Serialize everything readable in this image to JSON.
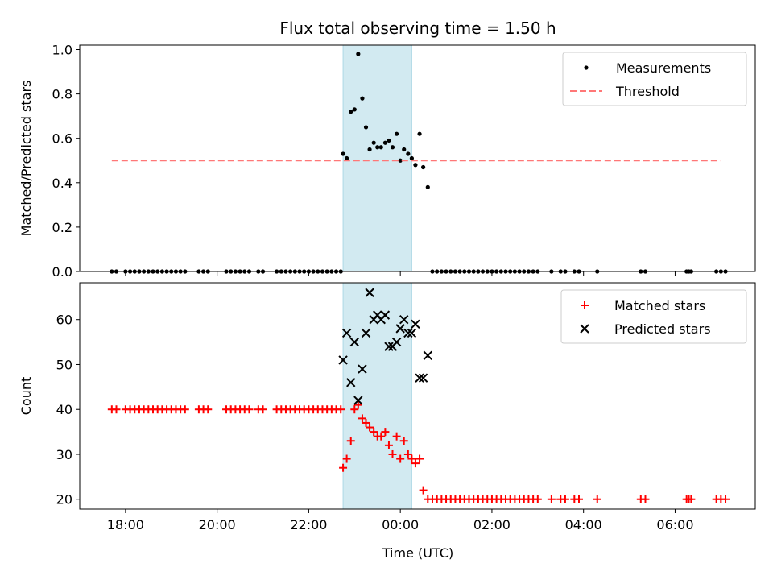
{
  "chart_data": {
    "type": "scatter",
    "title": "Flux total observing time = 1.50 h",
    "xlabel": "Time (UTC)",
    "x_ticks": [
      "18:00",
      "20:00",
      "22:00",
      "00:00",
      "02:00",
      "04:00",
      "06:00"
    ],
    "x_range_hours": [
      17.0,
      31.75
    ],
    "observing_window_hours": [
      22.75,
      24.25
    ],
    "shade_color": "#add8e6",
    "panels": [
      {
        "ylabel": "Matched/Predicted stars",
        "ylim": [
          0,
          1.02
        ],
        "yticks": [
          "0.0",
          "0.2",
          "0.4",
          "0.6",
          "0.8",
          "1.0"
        ],
        "legend_position": "upper right",
        "series": [
          {
            "name": "Measurements",
            "kind": "scatter",
            "marker": "dot",
            "color": "#000000",
            "points": [
              [
                17.7,
                0
              ],
              [
                17.8,
                0
              ],
              [
                18.0,
                0
              ],
              [
                18.1,
                0
              ],
              [
                18.2,
                0
              ],
              [
                18.3,
                0
              ],
              [
                18.4,
                0
              ],
              [
                18.5,
                0
              ],
              [
                18.6,
                0
              ],
              [
                18.7,
                0
              ],
              [
                18.8,
                0
              ],
              [
                18.9,
                0
              ],
              [
                19.0,
                0
              ],
              [
                19.1,
                0
              ],
              [
                19.2,
                0
              ],
              [
                19.3,
                0
              ],
              [
                19.6,
                0
              ],
              [
                19.7,
                0
              ],
              [
                19.8,
                0
              ],
              [
                20.2,
                0
              ],
              [
                20.3,
                0
              ],
              [
                20.4,
                0
              ],
              [
                20.5,
                0
              ],
              [
                20.6,
                0
              ],
              [
                20.7,
                0
              ],
              [
                20.9,
                0
              ],
              [
                21.0,
                0
              ],
              [
                21.3,
                0
              ],
              [
                21.4,
                0
              ],
              [
                21.5,
                0
              ],
              [
                21.6,
                0
              ],
              [
                21.7,
                0
              ],
              [
                21.8,
                0
              ],
              [
                21.9,
                0
              ],
              [
                22.0,
                0
              ],
              [
                22.1,
                0
              ],
              [
                22.2,
                0
              ],
              [
                22.3,
                0
              ],
              [
                22.4,
                0
              ],
              [
                22.5,
                0
              ],
              [
                22.6,
                0
              ],
              [
                22.7,
                0
              ],
              [
                22.75,
                0.53
              ],
              [
                22.83,
                0.51
              ],
              [
                22.92,
                0.72
              ],
              [
                23.0,
                0.73
              ],
              [
                23.08,
                0.98
              ],
              [
                23.17,
                0.78
              ],
              [
                23.25,
                0.65
              ],
              [
                23.33,
                0.55
              ],
              [
                23.42,
                0.58
              ],
              [
                23.5,
                0.56
              ],
              [
                23.58,
                0.56
              ],
              [
                23.67,
                0.58
              ],
              [
                23.75,
                0.59
              ],
              [
                23.83,
                0.56
              ],
              [
                23.92,
                0.62
              ],
              [
                24.0,
                0.5
              ],
              [
                24.08,
                0.55
              ],
              [
                24.17,
                0.53
              ],
              [
                24.25,
                0.51
              ],
              [
                24.33,
                0.48
              ],
              [
                24.42,
                0.62
              ],
              [
                24.5,
                0.47
              ],
              [
                24.6,
                0.38
              ],
              [
                24.7,
                0
              ],
              [
                24.8,
                0
              ],
              [
                24.9,
                0
              ],
              [
                25.0,
                0
              ],
              [
                25.1,
                0
              ],
              [
                25.2,
                0
              ],
              [
                25.3,
                0
              ],
              [
                25.4,
                0
              ],
              [
                25.5,
                0
              ],
              [
                25.6,
                0
              ],
              [
                25.7,
                0
              ],
              [
                25.8,
                0
              ],
              [
                25.9,
                0
              ],
              [
                26.0,
                0
              ],
              [
                26.1,
                0
              ],
              [
                26.2,
                0
              ],
              [
                26.3,
                0
              ],
              [
                26.4,
                0
              ],
              [
                26.5,
                0
              ],
              [
                26.6,
                0
              ],
              [
                26.7,
                0
              ],
              [
                26.8,
                0
              ],
              [
                26.9,
                0
              ],
              [
                27.0,
                0
              ],
              [
                27.3,
                0
              ],
              [
                27.5,
                0
              ],
              [
                27.6,
                0
              ],
              [
                27.8,
                0
              ],
              [
                27.9,
                0
              ],
              [
                28.3,
                0
              ],
              [
                29.25,
                0
              ],
              [
                29.35,
                0
              ],
              [
                30.25,
                0
              ],
              [
                30.3,
                0
              ],
              [
                30.35,
                0
              ],
              [
                30.9,
                0
              ],
              [
                31.0,
                0
              ],
              [
                31.1,
                0
              ]
            ]
          },
          {
            "name": "Threshold",
            "kind": "dashed-line",
            "color": "#ff7777",
            "points": [
              [
                17.7,
                0.5
              ],
              [
                31.0,
                0.5
              ]
            ]
          }
        ]
      },
      {
        "ylabel": "Count",
        "ylim": [
          17.8,
          68.2
        ],
        "yticks": [
          "20",
          "30",
          "40",
          "50",
          "60"
        ],
        "legend_position": "upper right",
        "series": [
          {
            "name": "Matched stars",
            "kind": "scatter",
            "marker": "plus",
            "color": "#ff0000",
            "points": [
              [
                17.7,
                40
              ],
              [
                17.8,
                40
              ],
              [
                18.0,
                40
              ],
              [
                18.1,
                40
              ],
              [
                18.2,
                40
              ],
              [
                18.3,
                40
              ],
              [
                18.4,
                40
              ],
              [
                18.5,
                40
              ],
              [
                18.6,
                40
              ],
              [
                18.7,
                40
              ],
              [
                18.8,
                40
              ],
              [
                18.9,
                40
              ],
              [
                19.0,
                40
              ],
              [
                19.1,
                40
              ],
              [
                19.2,
                40
              ],
              [
                19.3,
                40
              ],
              [
                19.6,
                40
              ],
              [
                19.7,
                40
              ],
              [
                19.8,
                40
              ],
              [
                20.2,
                40
              ],
              [
                20.3,
                40
              ],
              [
                20.4,
                40
              ],
              [
                20.5,
                40
              ],
              [
                20.6,
                40
              ],
              [
                20.7,
                40
              ],
              [
                20.9,
                40
              ],
              [
                21.0,
                40
              ],
              [
                21.3,
                40
              ],
              [
                21.4,
                40
              ],
              [
                21.5,
                40
              ],
              [
                21.6,
                40
              ],
              [
                21.7,
                40
              ],
              [
                21.8,
                40
              ],
              [
                21.9,
                40
              ],
              [
                22.0,
                40
              ],
              [
                22.1,
                40
              ],
              [
                22.2,
                40
              ],
              [
                22.3,
                40
              ],
              [
                22.4,
                40
              ],
              [
                22.5,
                40
              ],
              [
                22.6,
                40
              ],
              [
                22.7,
                40
              ],
              [
                22.75,
                27
              ],
              [
                22.83,
                29
              ],
              [
                22.92,
                33
              ],
              [
                23.0,
                40
              ],
              [
                23.08,
                41
              ],
              [
                23.17,
                38
              ],
              [
                23.25,
                37
              ],
              [
                23.33,
                36
              ],
              [
                23.42,
                35
              ],
              [
                23.5,
                34
              ],
              [
                23.58,
                34
              ],
              [
                23.67,
                35
              ],
              [
                23.75,
                32
              ],
              [
                23.83,
                30
              ],
              [
                23.92,
                34
              ],
              [
                24.0,
                29
              ],
              [
                24.08,
                33
              ],
              [
                24.17,
                30
              ],
              [
                24.25,
                29
              ],
              [
                24.33,
                28
              ],
              [
                24.42,
                29
              ],
              [
                24.5,
                22
              ],
              [
                24.6,
                20
              ],
              [
                24.7,
                20
              ],
              [
                24.8,
                20
              ],
              [
                24.9,
                20
              ],
              [
                25.0,
                20
              ],
              [
                25.1,
                20
              ],
              [
                25.2,
                20
              ],
              [
                25.3,
                20
              ],
              [
                25.4,
                20
              ],
              [
                25.5,
                20
              ],
              [
                25.6,
                20
              ],
              [
                25.7,
                20
              ],
              [
                25.8,
                20
              ],
              [
                25.9,
                20
              ],
              [
                26.0,
                20
              ],
              [
                26.1,
                20
              ],
              [
                26.2,
                20
              ],
              [
                26.3,
                20
              ],
              [
                26.4,
                20
              ],
              [
                26.5,
                20
              ],
              [
                26.6,
                20
              ],
              [
                26.7,
                20
              ],
              [
                26.8,
                20
              ],
              [
                26.9,
                20
              ],
              [
                27.0,
                20
              ],
              [
                27.3,
                20
              ],
              [
                27.5,
                20
              ],
              [
                27.6,
                20
              ],
              [
                27.8,
                20
              ],
              [
                27.9,
                20
              ],
              [
                28.3,
                20
              ],
              [
                29.25,
                20
              ],
              [
                29.35,
                20
              ],
              [
                30.25,
                20
              ],
              [
                30.3,
                20
              ],
              [
                30.35,
                20
              ],
              [
                30.9,
                20
              ],
              [
                31.0,
                20
              ],
              [
                31.1,
                20
              ]
            ]
          },
          {
            "name": "Predicted stars",
            "kind": "scatter",
            "marker": "x",
            "color": "#000000",
            "points": [
              [
                22.75,
                51
              ],
              [
                22.83,
                57
              ],
              [
                22.92,
                46
              ],
              [
                23.0,
                55
              ],
              [
                23.08,
                42
              ],
              [
                23.17,
                49
              ],
              [
                23.25,
                57
              ],
              [
                23.33,
                66
              ],
              [
                23.42,
                60
              ],
              [
                23.5,
                61
              ],
              [
                23.58,
                60
              ],
              [
                23.67,
                61
              ],
              [
                23.75,
                54
              ],
              [
                23.83,
                54
              ],
              [
                23.92,
                55
              ],
              [
                24.0,
                58
              ],
              [
                24.08,
                60
              ],
              [
                24.17,
                57
              ],
              [
                24.25,
                57
              ],
              [
                24.33,
                59
              ],
              [
                24.42,
                47
              ],
              [
                24.5,
                47
              ],
              [
                24.6,
                52
              ]
            ]
          }
        ]
      }
    ]
  }
}
